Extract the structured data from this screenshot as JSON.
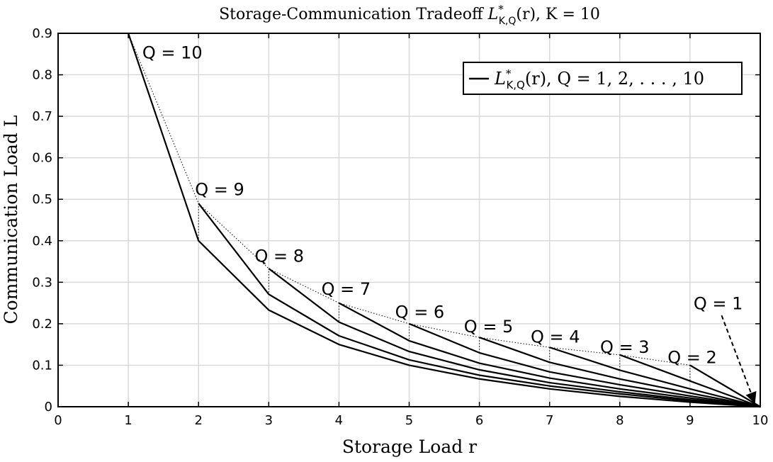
{
  "chart_data": {
    "type": "line",
    "title": "Storage-Communication Tradeoff L*K,Q(r), K = 10",
    "title_parts": {
      "pre": "Storage-Communication Tradeoff ",
      "L": "L",
      "sup": "*",
      "sub": "K,Q",
      "post": "(r), K = 10"
    },
    "xlabel": "Storage  Load  r",
    "ylabel": "Communication Load L",
    "xlim": [
      0,
      10
    ],
    "ylim": [
      0,
      0.9
    ],
    "xticks": [
      "0",
      "1",
      "2",
      "3",
      "4",
      "5",
      "6",
      "7",
      "8",
      "9",
      "10"
    ],
    "yticks": [
      "0",
      "0.1",
      "0.2",
      "0.3",
      "0.4",
      "0.5",
      "0.6",
      "0.7",
      "0.8",
      "0.9"
    ],
    "grid": true,
    "legend": {
      "position": "top-right",
      "entry": "L*K,Q(r),  Q = 1, 2, . . . , 10",
      "entry_parts": {
        "L": "L",
        "sup": "*",
        "sub": "K,Q",
        "post": "(r),  Q = 1, 2, . . . , 10"
      }
    },
    "series": [
      {
        "label": "Q = 10",
        "x": [
          1,
          2,
          3,
          4,
          5,
          6,
          7,
          8,
          9,
          10
        ],
        "y": [
          0.9,
          0.4,
          0.233,
          0.15,
          0.1,
          0.067,
          0.043,
          0.025,
          0.011,
          0
        ]
      },
      {
        "label": "Q = 9",
        "x": [
          2,
          3,
          4,
          5,
          6,
          7,
          8,
          9,
          10
        ],
        "y": [
          0.49,
          0.271,
          0.171,
          0.113,
          0.076,
          0.05,
          0.031,
          0.014,
          0
        ]
      },
      {
        "label": "Q = 8",
        "x": [
          3,
          4,
          5,
          6,
          7,
          8,
          9,
          10
        ],
        "y": [
          0.333,
          0.204,
          0.133,
          0.089,
          0.058,
          0.036,
          0.017,
          0
        ]
      },
      {
        "label": "Q = 7",
        "x": [
          4,
          5,
          6,
          7,
          8,
          9,
          10
        ],
        "y": [
          0.25,
          0.159,
          0.105,
          0.069,
          0.043,
          0.021,
          0
        ]
      },
      {
        "label": "Q = 6",
        "x": [
          5,
          6,
          7,
          8,
          9,
          10
        ],
        "y": [
          0.2,
          0.13,
          0.084,
          0.053,
          0.026,
          0
        ]
      },
      {
        "label": "Q = 5",
        "x": [
          6,
          7,
          8,
          9,
          10
        ],
        "y": [
          0.167,
          0.107,
          0.067,
          0.033,
          0
        ]
      },
      {
        "label": "Q = 4",
        "x": [
          7,
          8,
          9,
          10
        ],
        "y": [
          0.143,
          0.088,
          0.043,
          0
        ]
      },
      {
        "label": "Q = 3",
        "x": [
          8,
          9,
          10
        ],
        "y": [
          0.125,
          0.062,
          0
        ]
      },
      {
        "label": "Q = 2",
        "x": [
          9,
          10
        ],
        "y": [
          0.1,
          0
        ]
      }
    ],
    "envelope": {
      "style": "dotted",
      "x": [
        1,
        2,
        3,
        4,
        5,
        6,
        7,
        8,
        9,
        10
      ],
      "y": [
        0.9,
        0.49,
        0.333,
        0.25,
        0.2,
        0.167,
        0.143,
        0.125,
        0.1,
        0
      ]
    },
    "annotations": [
      {
        "text": "Q = 10",
        "x": 1.2,
        "y": 0.855
      },
      {
        "text": "Q = 9",
        "x": 1.95,
        "y": 0.525
      },
      {
        "text": "Q = 8",
        "x": 2.8,
        "y": 0.365
      },
      {
        "text": "Q = 7",
        "x": 3.75,
        "y": 0.285
      },
      {
        "text": "Q = 6",
        "x": 4.8,
        "y": 0.23
      },
      {
        "text": "Q = 5",
        "x": 5.78,
        "y": 0.195
      },
      {
        "text": "Q = 4",
        "x": 6.73,
        "y": 0.17
      },
      {
        "text": "Q = 3",
        "x": 7.72,
        "y": 0.145
      },
      {
        "text": "Q = 2",
        "x": 8.68,
        "y": 0.12
      },
      {
        "text": "Q = 1",
        "x": 9.05,
        "y": 0.25,
        "arrow_from": [
          9.45,
          0.22
        ],
        "arrow_to": [
          9.92,
          0.01
        ]
      }
    ]
  }
}
